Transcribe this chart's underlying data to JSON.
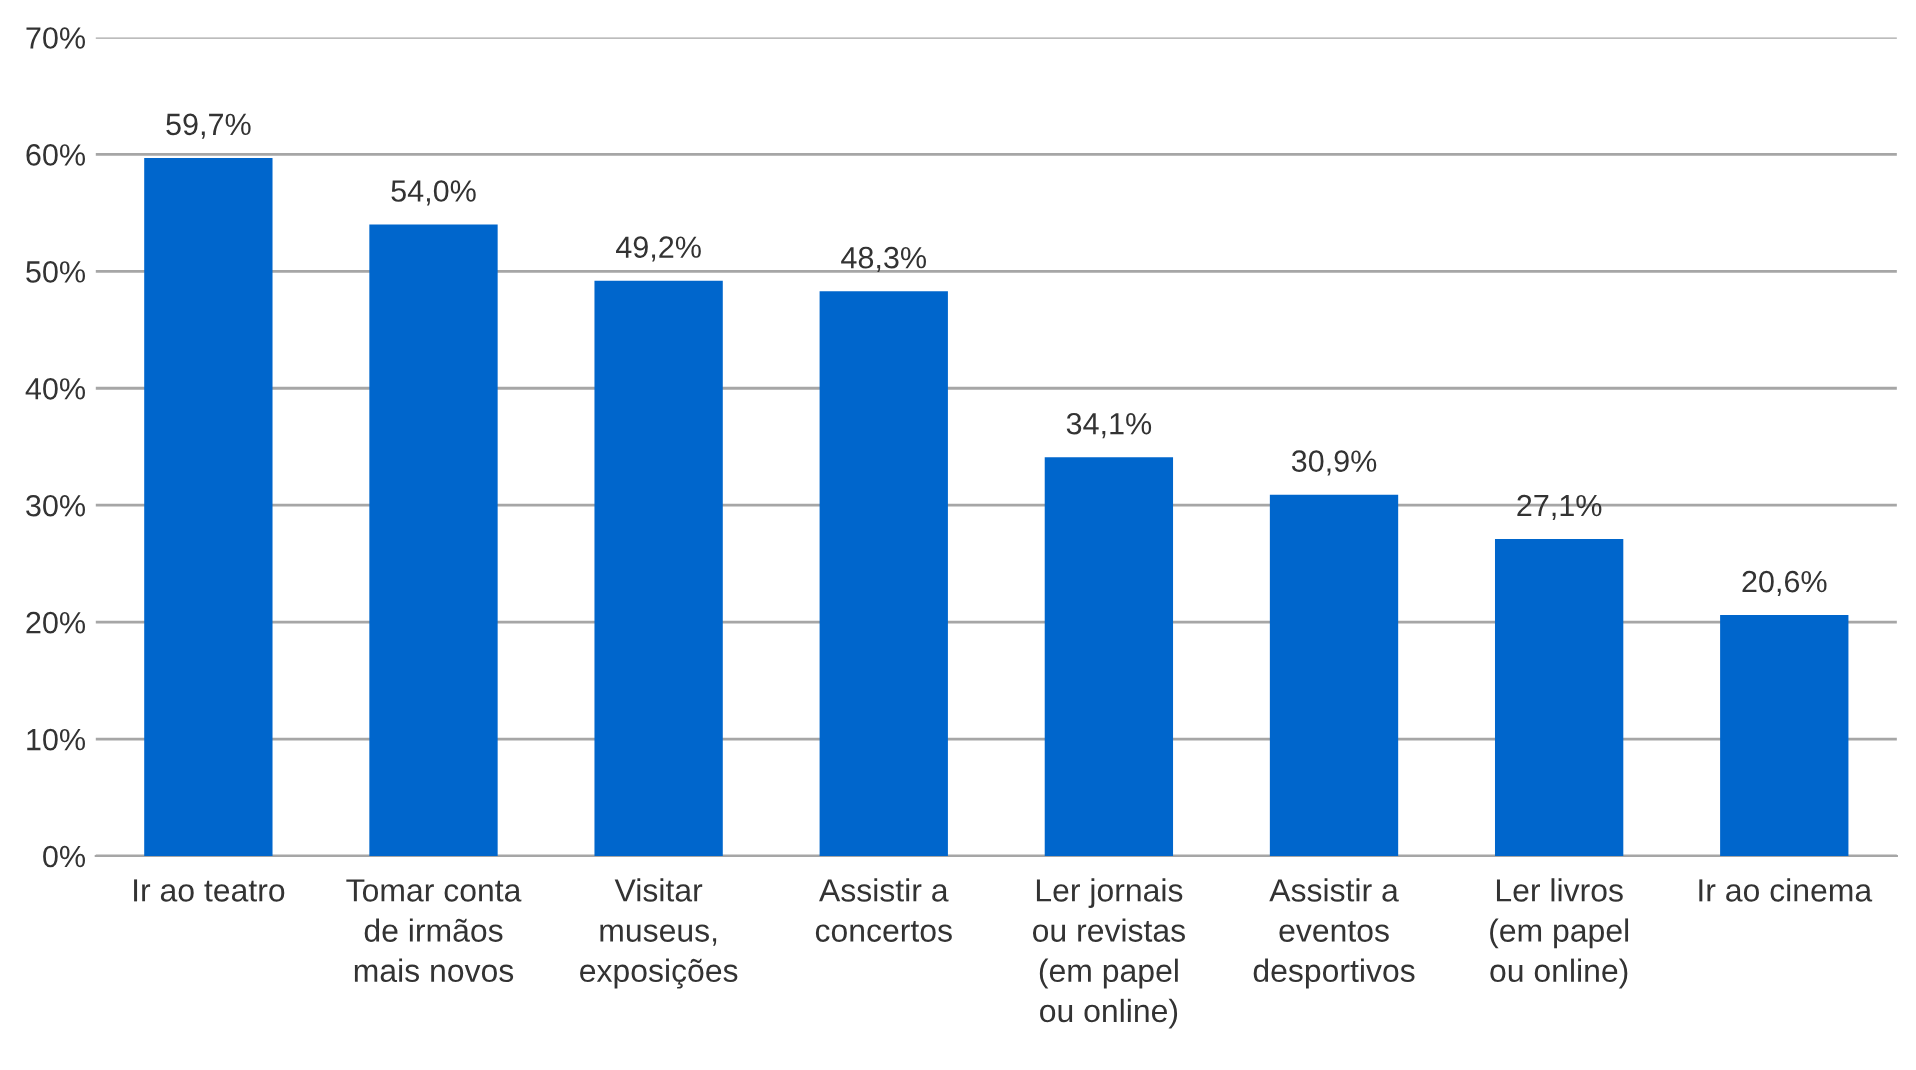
{
  "chart_data": {
    "type": "bar",
    "categories": [
      "Ir ao teatro",
      "Tomar conta\nde irmãos\nmais novos",
      "Visitar\nmuseus,\nexposições",
      "Assistir a\nconcertos",
      "Ler jornais\nou revistas\n(em papel\nou online)",
      "Assistir a\neventos\ndesportivos",
      "Ler livros\n(em papel\nou online)",
      "Ir ao cinema"
    ],
    "values": [
      59.7,
      54.0,
      49.2,
      48.3,
      34.1,
      30.9,
      27.1,
      20.6
    ],
    "value_labels": [
      "59,7%",
      "54,0%",
      "49,2%",
      "48,3%",
      "34,1%",
      "30,9%",
      "27,1%",
      "20,6%"
    ],
    "color": "#0066cc",
    "ylim": [
      0,
      70
    ],
    "yticks": [
      {
        "value": 0,
        "label": "0%"
      },
      {
        "value": 10,
        "label": "10%"
      },
      {
        "value": 20,
        "label": "20%"
      },
      {
        "value": 30,
        "label": "30%"
      },
      {
        "value": 40,
        "label": "40%"
      },
      {
        "value": 50,
        "label": "50%"
      },
      {
        "value": 60,
        "label": "60%"
      },
      {
        "value": 70,
        "label": "70%"
      }
    ],
    "grid": "y"
  }
}
